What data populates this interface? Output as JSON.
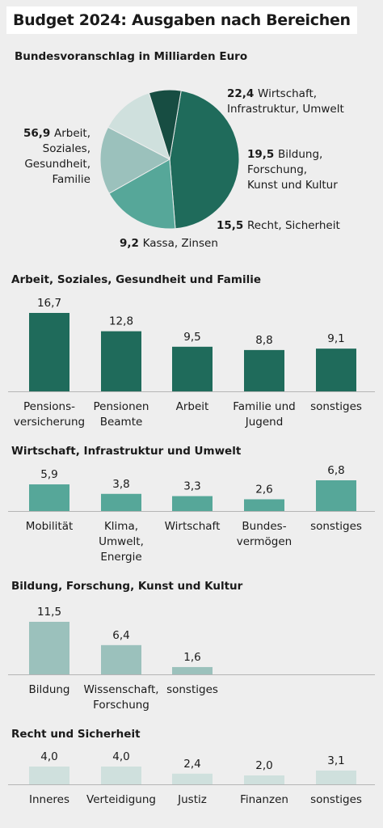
{
  "title": "Budget 2024: Ausgaben nach Bereichen",
  "chart_data": [
    {
      "type": "pie",
      "subtitle": "Bundesvoranschlag in Milliarden Euro",
      "slices": [
        {
          "value": 56.9,
          "value_label": "56,9",
          "label": [
            "Arbeit,",
            "Soziales,",
            "Gesundheit,",
            "Familie"
          ],
          "color": "#1f6b5b"
        },
        {
          "value": 22.4,
          "value_label": "22,4",
          "label": [
            "Wirtschaft,",
            "Infrastruktur, Umwelt"
          ],
          "color": "#56a799"
        },
        {
          "value": 19.5,
          "value_label": "19,5",
          "label": [
            "Bildung,",
            "Forschung,",
            "Kunst und Kultur"
          ],
          "color": "#9bc1bc"
        },
        {
          "value": 15.5,
          "value_label": "15,5",
          "label": [
            "Recht, Sicherheit"
          ],
          "color": "#cfe0dd"
        },
        {
          "value": 9.2,
          "value_label": "9,2",
          "label": [
            "Kassa, Zinsen"
          ],
          "color": "#174d42"
        }
      ]
    },
    {
      "type": "bar",
      "title": "Arbeit, Soziales, Gesundheit und Familie",
      "color": "#1f6b5b",
      "categories": [
        [
          "Pensions-",
          "versicherung"
        ],
        [
          "Pensionen",
          "Beamte"
        ],
        [
          "Arbeit"
        ],
        [
          "Familie und",
          "Jugend"
        ],
        [
          "sonstiges"
        ]
      ],
      "values": [
        16.7,
        12.8,
        9.5,
        8.8,
        9.1
      ],
      "value_labels": [
        "16,7",
        "12,8",
        "9,5",
        "8,8",
        "9,1"
      ]
    },
    {
      "type": "bar",
      "title": "Wirtschaft, Infrastruktur und Umwelt",
      "color": "#56a799",
      "categories": [
        [
          "Mobilität"
        ],
        [
          "Klima,",
          "Umwelt,",
          "Energie"
        ],
        [
          "Wirtschaft"
        ],
        [
          "Bundes-",
          "vermögen"
        ],
        [
          "sonstiges"
        ]
      ],
      "values": [
        5.9,
        3.8,
        3.3,
        2.6,
        6.8
      ],
      "value_labels": [
        "5,9",
        "3,8",
        "3,3",
        "2,6",
        "6,8"
      ]
    },
    {
      "type": "bar",
      "title": "Bildung, Forschung, Kunst und Kultur",
      "color": "#9bc1bc",
      "categories": [
        [
          "Bildung"
        ],
        [
          "Wissenschaft,",
          "Forschung"
        ],
        [
          "sonstiges"
        ]
      ],
      "values": [
        11.5,
        6.4,
        1.6
      ],
      "value_labels": [
        "11,5",
        "6,4",
        "1,6"
      ]
    },
    {
      "type": "bar",
      "title": "Recht und Sicherheit",
      "color": "#cfe0dd",
      "categories": [
        [
          "Inneres"
        ],
        [
          "Verteidigung"
        ],
        [
          "Justiz"
        ],
        [
          "Finanzen"
        ],
        [
          "sonstiges"
        ]
      ],
      "values": [
        4.0,
        4.0,
        2.4,
        2.0,
        3.1
      ],
      "value_labels": [
        "4,0",
        "4,0",
        "2,4",
        "2,0",
        "3,1"
      ]
    }
  ]
}
